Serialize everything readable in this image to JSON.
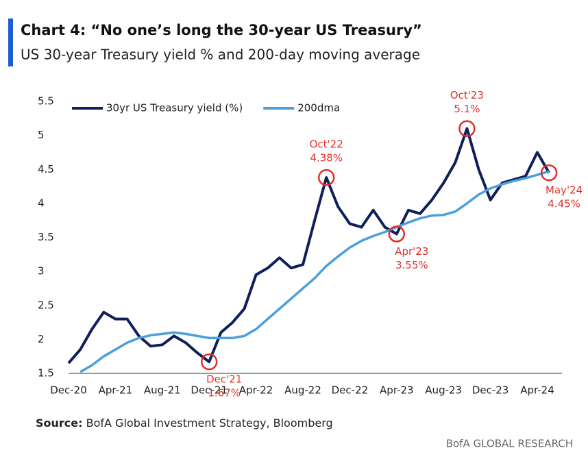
{
  "chart_data": {
    "type": "line",
    "title": "Chart 4: “No one’s long the 30-year US Treasury”",
    "subtitle": "US 30-year Treasury yield % and 200-day moving average",
    "categories": [
      "Dec-20",
      null,
      null,
      null,
      "Apr-21",
      null,
      null,
      null,
      "Aug-21",
      null,
      null,
      null,
      "Dec-21",
      null,
      null,
      null,
      "Apr-22",
      null,
      null,
      null,
      "Aug-22",
      null,
      null,
      null,
      "Dec-22",
      null,
      null,
      null,
      "Apr-23",
      null,
      null,
      null,
      "Aug-23",
      null,
      null,
      null,
      "Dec-23",
      null,
      null,
      null,
      "Apr-24",
      null
    ],
    "series": [
      {
        "name": "30yr US Treasury yield (%)",
        "color": "#0f1f5c",
        "values": [
          1.65,
          1.85,
          2.15,
          2.4,
          2.3,
          2.3,
          2.05,
          1.9,
          1.92,
          2.05,
          1.95,
          1.8,
          1.67,
          2.1,
          2.25,
          2.45,
          2.95,
          3.05,
          3.2,
          3.05,
          3.1,
          3.75,
          4.38,
          3.95,
          3.7,
          3.65,
          3.9,
          3.65,
          3.55,
          3.9,
          3.85,
          4.05,
          4.3,
          4.6,
          5.1,
          4.5,
          4.05,
          4.3,
          4.35,
          4.4,
          4.75,
          4.45
        ],
        "point_labels": [
          null,
          null,
          null,
          null,
          null,
          null,
          null,
          null,
          null,
          null,
          null,
          null,
          "Dec'21",
          null,
          null,
          null,
          null,
          null,
          null,
          null,
          null,
          null,
          "Oct'22",
          null,
          null,
          null,
          null,
          null,
          "Apr'23",
          null,
          null,
          null,
          null,
          null,
          "Oct'23",
          null,
          null,
          null,
          null,
          null,
          null,
          "May'24"
        ],
        "value_labels": [
          null,
          null,
          null,
          null,
          null,
          null,
          null,
          null,
          null,
          null,
          null,
          null,
          "1.67%",
          null,
          null,
          null,
          null,
          null,
          null,
          null,
          null,
          null,
          "4.38%",
          null,
          null,
          null,
          null,
          null,
          "3.55%",
          null,
          null,
          null,
          null,
          null,
          "5.1%",
          null,
          null,
          null,
          null,
          null,
          null,
          "4.45%"
        ]
      },
      {
        "name": "200dma",
        "color": "#4a9fdc",
        "values": [
          null,
          1.52,
          1.62,
          1.75,
          1.85,
          1.95,
          2.02,
          2.06,
          2.08,
          2.1,
          2.08,
          2.05,
          2.02,
          2.02,
          2.02,
          2.05,
          2.15,
          2.3,
          2.45,
          2.6,
          2.75,
          2.9,
          3.08,
          3.22,
          3.35,
          3.45,
          3.52,
          3.58,
          3.65,
          3.72,
          3.78,
          3.82,
          3.83,
          3.88,
          4.0,
          4.13,
          4.22,
          4.28,
          4.33,
          4.37,
          4.42,
          4.47
        ]
      }
    ],
    "ylim": [
      1.5,
      5.5
    ],
    "yticks": [
      1.5,
      2,
      2.5,
      3,
      3.5,
      4,
      4.5,
      5,
      5.5
    ],
    "grid": false,
    "legend": "top-left",
    "source": {
      "label": "Source:",
      "text": "BofA Global Investment Strategy, Bloomberg"
    },
    "brand": "BofA GLOBAL RESEARCH"
  }
}
